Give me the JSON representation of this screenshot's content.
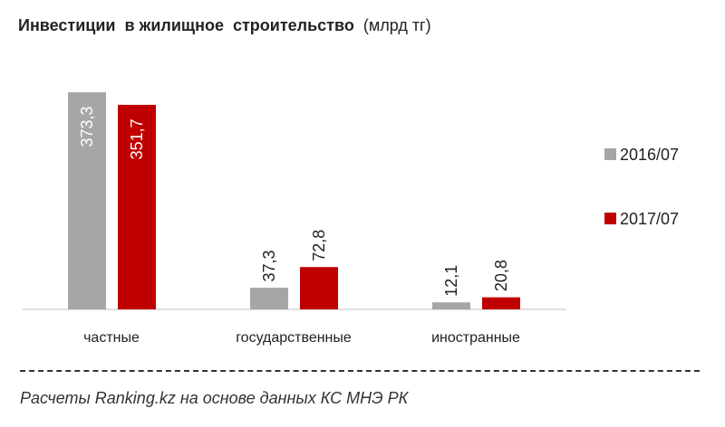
{
  "chart_data": {
    "type": "bar",
    "title": "Инвестиции  в жилищное  строительство",
    "subtitle": "(млрд тг)",
    "categories": [
      "частные",
      "государственные",
      "иностранные"
    ],
    "series": [
      {
        "name": "2016/07",
        "color": "#a6a6a6",
        "values": [
          373.3,
          37.3,
          12.1
        ],
        "labels": [
          "373,3",
          "37,3",
          "12,1"
        ]
      },
      {
        "name": "2017/07",
        "color": "#c00000",
        "values": [
          351.7,
          72.8,
          20.8
        ],
        "labels": [
          "351,7",
          "72,8",
          "20,8"
        ]
      }
    ],
    "ylim": [
      0,
      373.3
    ],
    "legend": "right",
    "grid": false
  },
  "footer": "Расчеты Ranking.kz на основе данных  КС МНЭ РК"
}
